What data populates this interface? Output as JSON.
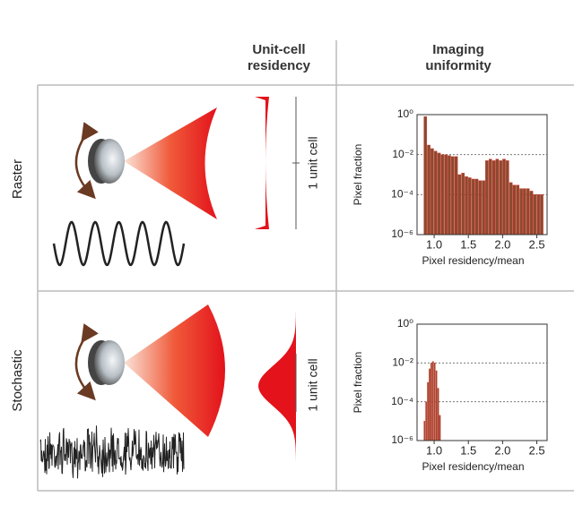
{
  "column_headers": [
    "Unit-cell residency",
    "Imaging uniformity"
  ],
  "row_labels": [
    "Raster",
    "Stochastic"
  ],
  "unit_cell_labels": [
    "1 unit cell",
    "1 unit cell"
  ],
  "chart_data": [
    {
      "type": "histogram",
      "xlabel": "Pixel residency/mean",
      "ylabel": "Pixel fraction",
      "color": "#8a4a30",
      "log_y": true,
      "grid": true,
      "bins": [
        0.85,
        0.9,
        0.95,
        1.0,
        1.05,
        1.1,
        1.15,
        1.2,
        1.25,
        1.3,
        1.35,
        1.4,
        1.45,
        1.5,
        1.55,
        1.6,
        1.65,
        1.7,
        1.75,
        1.8,
        1.85,
        1.9,
        1.95,
        2.0,
        2.05,
        2.1,
        2.15,
        2.2,
        2.25,
        2.3,
        2.35,
        2.4,
        2.45,
        2.5,
        2.55,
        2.6
      ],
      "values": [
        0.8,
        0.03,
        0.02,
        0.015,
        0.012,
        0.01,
        0.01,
        0.009,
        0.008,
        0.008,
        0.001,
        0.0012,
        0.0008,
        0.0007,
        0.0006,
        0.0006,
        0.0005,
        0.0005,
        0.005,
        0.006,
        0.005,
        0.006,
        0.005,
        0.006,
        0.005,
        0.0004,
        0.0003,
        0.0003,
        0.0002,
        0.0002,
        0.0002,
        0.00015,
        0.0001,
        0.0001,
        0.0001
      ],
      "xlim": [
        0.75,
        2.65
      ],
      "ylim": [
        1e-06,
        1
      ],
      "xticks": [
        {
          "value": 1,
          "label": "1.0"
        },
        1.5,
        {
          "value": 2,
          "label": "2.0"
        },
        2.5
      ],
      "yticks": [
        {
          "value": 1e-06,
          "label": "10⁻⁶"
        },
        {
          "value": 0.0001,
          "label": "10⁻⁴"
        },
        {
          "value": 0.01,
          "label": "10⁻²"
        },
        {
          "value": 1,
          "label": "10⁰"
        }
      ]
    },
    {
      "type": "histogram",
      "xlabel": "Pixel residency/mean",
      "ylabel": "Pixel fraction",
      "color": "#8a4a30",
      "log_y": true,
      "grid": true,
      "bins": [
        0.85,
        0.875,
        0.9,
        0.925,
        0.95,
        0.975,
        1.0,
        1.025,
        1.05,
        1.075,
        1.1
      ],
      "values": [
        1e-05,
        0.0001,
        0.001,
        0.005,
        0.01,
        0.012,
        0.01,
        0.004,
        0.0005,
        2e-05
      ],
      "xlim": [
        0.75,
        2.65
      ],
      "ylim": [
        1e-06,
        1
      ],
      "xticks": [
        {
          "value": 1,
          "label": "1.0"
        },
        1.5,
        {
          "value": 2,
          "label": "2.0"
        },
        2.5
      ],
      "yticks": [
        {
          "value": 1e-06,
          "label": "10⁻⁶"
        },
        {
          "value": 0.0001,
          "label": "10⁻⁴"
        },
        {
          "value": 0.01,
          "label": "10⁻²"
        },
        {
          "value": 1,
          "label": "10⁰"
        }
      ]
    }
  ]
}
